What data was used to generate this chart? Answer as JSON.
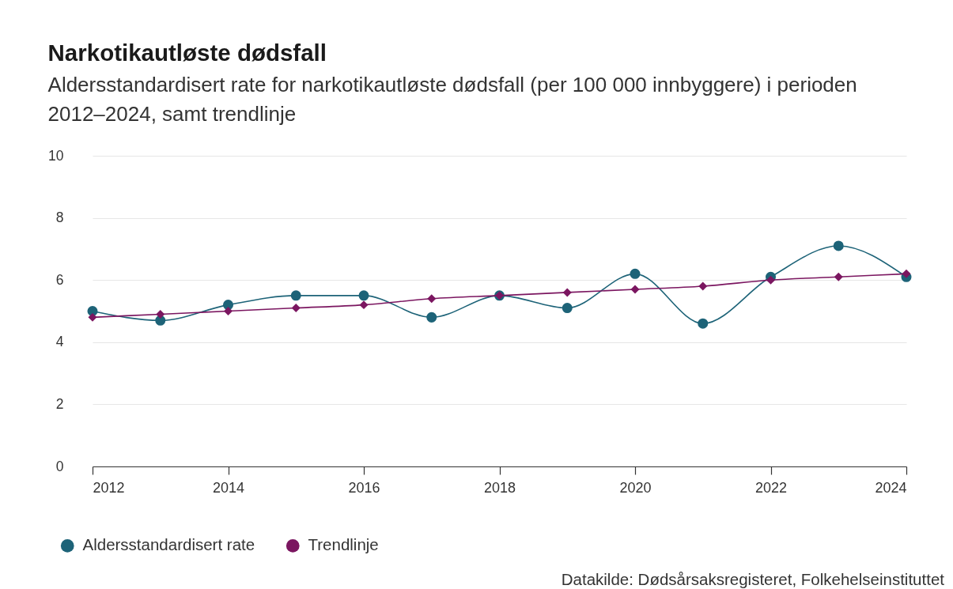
{
  "chart_data": {
    "type": "line",
    "title": "Narkotikautløste dødsfall",
    "subtitle": "Aldersstandardisert rate for narkotikautløste dødsfall (per 100 000 innbyggere) i perioden 2012–2024, samt trendlinje",
    "x": [
      2012,
      2013,
      2014,
      2015,
      2016,
      2017,
      2018,
      2019,
      2020,
      2021,
      2022,
      2023,
      2024
    ],
    "series": [
      {
        "name": "Aldersstandardisert rate",
        "color": "#1d6378",
        "marker": "circle",
        "values": [
          5.0,
          4.7,
          5.2,
          5.5,
          5.5,
          4.8,
          5.5,
          5.1,
          6.2,
          4.6,
          6.1,
          7.1,
          6.1
        ]
      },
      {
        "name": "Trendlinje",
        "color": "#7b1660",
        "marker": "diamond",
        "values": [
          4.8,
          4.9,
          5.0,
          5.1,
          5.2,
          5.4,
          5.5,
          5.6,
          5.7,
          5.8,
          6.0,
          6.1,
          6.2
        ]
      }
    ],
    "xlim": [
      2012,
      2024
    ],
    "xticks": [
      2012,
      2014,
      2016,
      2018,
      2020,
      2022,
      2024
    ],
    "ylim": [
      0,
      10
    ],
    "yticks": [
      0,
      2,
      4,
      6,
      8,
      10
    ],
    "grid": "y",
    "legend": "bottom",
    "line_style": "solid",
    "annotations": [
      "Datakilde: Dødsårsaksregisteret, Folkehelseinstituttet"
    ]
  }
}
